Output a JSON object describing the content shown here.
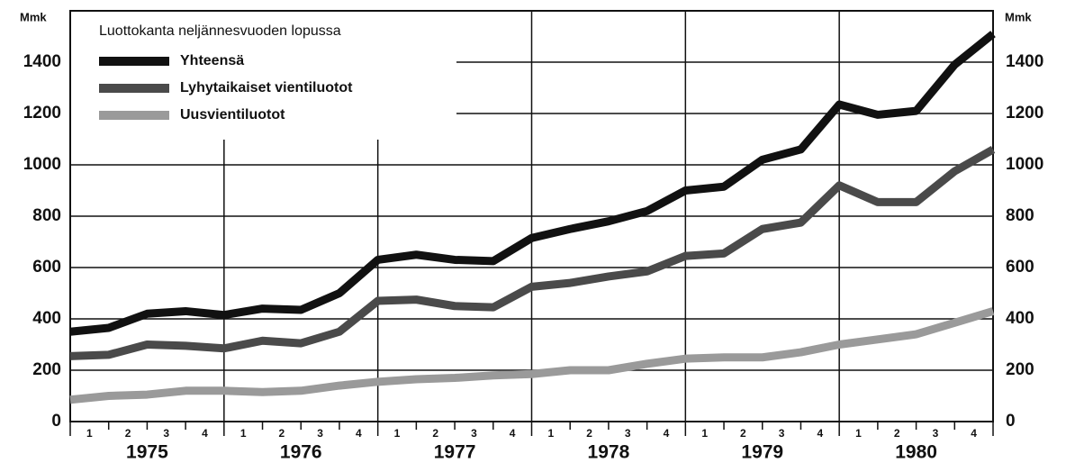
{
  "chart_data": {
    "type": "line",
    "legend_title": "Luottokanta neljännesvuoden lopussa",
    "y_label": "Mmk",
    "years": [
      1975,
      1976,
      1977,
      1978,
      1979,
      1980
    ],
    "quarters": [
      "1",
      "2",
      "3",
      "4"
    ],
    "x": [
      1975,
      1975.25,
      1975.5,
      1975.75,
      1976,
      1976.25,
      1976.5,
      1976.75,
      1977,
      1977.25,
      1977.5,
      1977.75,
      1978,
      1978.25,
      1978.5,
      1978.75,
      1979,
      1979.25,
      1979.5,
      1979.75,
      1980,
      1980.25,
      1980.5,
      1980.75,
      1981
    ],
    "xlim": [
      1975,
      1981
    ],
    "ylim": [
      0,
      1600
    ],
    "yticks": [
      0,
      200,
      400,
      600,
      800,
      1000,
      1200,
      1400
    ],
    "grid": true,
    "series": [
      {
        "name": "Yhteensä",
        "color": "#111111",
        "values": [
          350,
          365,
          420,
          430,
          415,
          440,
          435,
          500,
          630,
          650,
          630,
          625,
          715,
          750,
          780,
          820,
          900,
          915,
          1020,
          1060,
          1235,
          1195,
          1210,
          1390,
          1510
        ]
      },
      {
        "name": "Lyhytaikaiset vientiluotot",
        "color": "#4a4a4a",
        "values": [
          255,
          260,
          300,
          295,
          285,
          315,
          305,
          350,
          470,
          475,
          450,
          445,
          525,
          540,
          565,
          585,
          645,
          655,
          750,
          775,
          920,
          855,
          855,
          975,
          1060
        ]
      },
      {
        "name": "Uusvientiluotot",
        "color": "#9a9a9a",
        "values": [
          85,
          100,
          105,
          120,
          120,
          115,
          120,
          140,
          155,
          165,
          170,
          180,
          185,
          200,
          200,
          225,
          245,
          250,
          250,
          270,
          300,
          320,
          340,
          385,
          430
        ]
      }
    ]
  }
}
